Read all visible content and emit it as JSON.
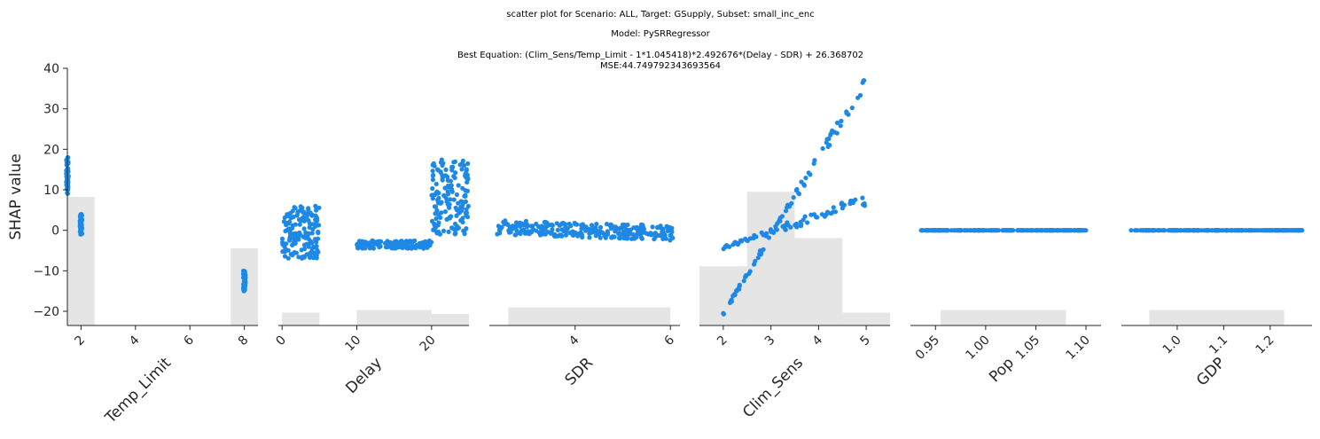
{
  "titles": {
    "line1": "scatter plot for Scenario: ALL, Target: GSupply, Subset: small_inc_enc",
    "line2": "Model: PySRRegressor",
    "line3": "Best Equation: (Clim_Sens/Temp_Limit - 1*1.045418)*2.492676*(Delay - SDR) + 26.368702",
    "line4": "MSE:44.749792343693564"
  },
  "colors": {
    "points": "#1e88e5",
    "histogram": "#e5e5e5",
    "axis": "#262626"
  },
  "chart_data": [
    {
      "type": "scatter",
      "xlabel": "Temp_Limit",
      "ylabel": "SHAP value",
      "xlim": [
        1.5,
        8.5
      ],
      "ylim": [
        -23.5,
        40
      ],
      "xticks": [
        "2",
        "4",
        "6",
        "8"
      ],
      "yticks": [
        "−20",
        "−10",
        "0",
        "10",
        "20",
        "30",
        "40"
      ],
      "histogram": [
        {
          "x0": 1.5,
          "x1": 2.5,
          "frac": 0.5
        },
        {
          "x0": 7.5,
          "x1": 8.5,
          "frac": 0.3
        }
      ],
      "point_groups": [
        {
          "x": 1.5,
          "y_range": [
            9,
            18
          ]
        },
        {
          "x": 2,
          "y_range": [
            -1,
            4
          ]
        },
        {
          "x": 8,
          "y_range": [
            -15,
            -10
          ]
        }
      ]
    },
    {
      "type": "scatter",
      "xlabel": "Delay",
      "xlim": [
        -0.5,
        25
      ],
      "ylim": [
        -23.5,
        40
      ],
      "xticks": [
        "0",
        "10",
        "20"
      ],
      "histogram": [
        {
          "x0": 0,
          "x1": 5,
          "frac": 0.05
        },
        {
          "x0": 10,
          "x1": 20,
          "frac": 0.06
        },
        {
          "x0": 20,
          "x1": 25,
          "frac": 0.045
        }
      ],
      "point_groups": [
        {
          "x_range": [
            0,
            5
          ],
          "y_range": [
            -7,
            6
          ]
        },
        {
          "x_range": [
            10,
            20
          ],
          "y_range": [
            -4.5,
            -2.5
          ]
        },
        {
          "x_range": [
            20,
            25
          ],
          "y_range": [
            -1,
            17.5
          ]
        }
      ]
    },
    {
      "type": "scatter",
      "xlabel": "SDR",
      "xlim": [
        2.2,
        6.2
      ],
      "ylim": [
        -23.5,
        40
      ],
      "xticks": [
        "4",
        "6"
      ],
      "histogram": [
        {
          "x0": 2.6,
          "x1": 6.0,
          "frac": 0.07
        }
      ],
      "point_groups": [
        {
          "x_range": [
            2.35,
            6.05
          ],
          "y_start": [
            -1,
            2.5
          ],
          "y_end": [
            -2.5,
            1.2
          ]
        }
      ]
    },
    {
      "type": "scatter",
      "xlabel": "Clim_Sens",
      "xlim": [
        1.5,
        5.5
      ],
      "ylim": [
        -23.5,
        40
      ],
      "xticks": [
        "2",
        "3",
        "4",
        "5"
      ],
      "histogram": [
        {
          "x0": 1.5,
          "x1": 2.5,
          "frac": 0.23
        },
        {
          "x0": 2.5,
          "x1": 3.5,
          "frac": 0.52
        },
        {
          "x0": 3.5,
          "x1": 4.5,
          "frac": 0.34
        },
        {
          "x0": 4.5,
          "x1": 5.5,
          "frac": 0.05
        }
      ],
      "point_groups": [
        {
          "x_range": [
            2,
            5
          ],
          "y_start": -4.3,
          "y_end": 7.5
        },
        {
          "x_range": [
            2,
            5
          ],
          "y_start": -20.5,
          "y_end": 37
        }
      ]
    },
    {
      "type": "scatter",
      "xlabel": "Pop",
      "xlim": [
        0.925,
        1.115
      ],
      "ylim": [
        -23.5,
        40
      ],
      "xticks": [
        "0.95",
        "1.00",
        "1.05",
        "1.10"
      ],
      "histogram": [
        {
          "x0": 0.955,
          "x1": 1.08,
          "frac": 0.06
        }
      ],
      "point_groups": [
        {
          "x_range": [
            0.935,
            1.1
          ],
          "y": 0
        }
      ]
    },
    {
      "type": "scatter",
      "xlabel": "GDP",
      "xlim": [
        0.88,
        1.29
      ],
      "ylim": [
        -23.5,
        40
      ],
      "xticks": [
        "1.0",
        "1.1",
        "1.2"
      ],
      "histogram": [
        {
          "x0": 0.94,
          "x1": 1.23,
          "frac": 0.06
        }
      ],
      "point_groups": [
        {
          "x_range": [
            0.9,
            1.27
          ],
          "y": 0
        }
      ]
    }
  ]
}
